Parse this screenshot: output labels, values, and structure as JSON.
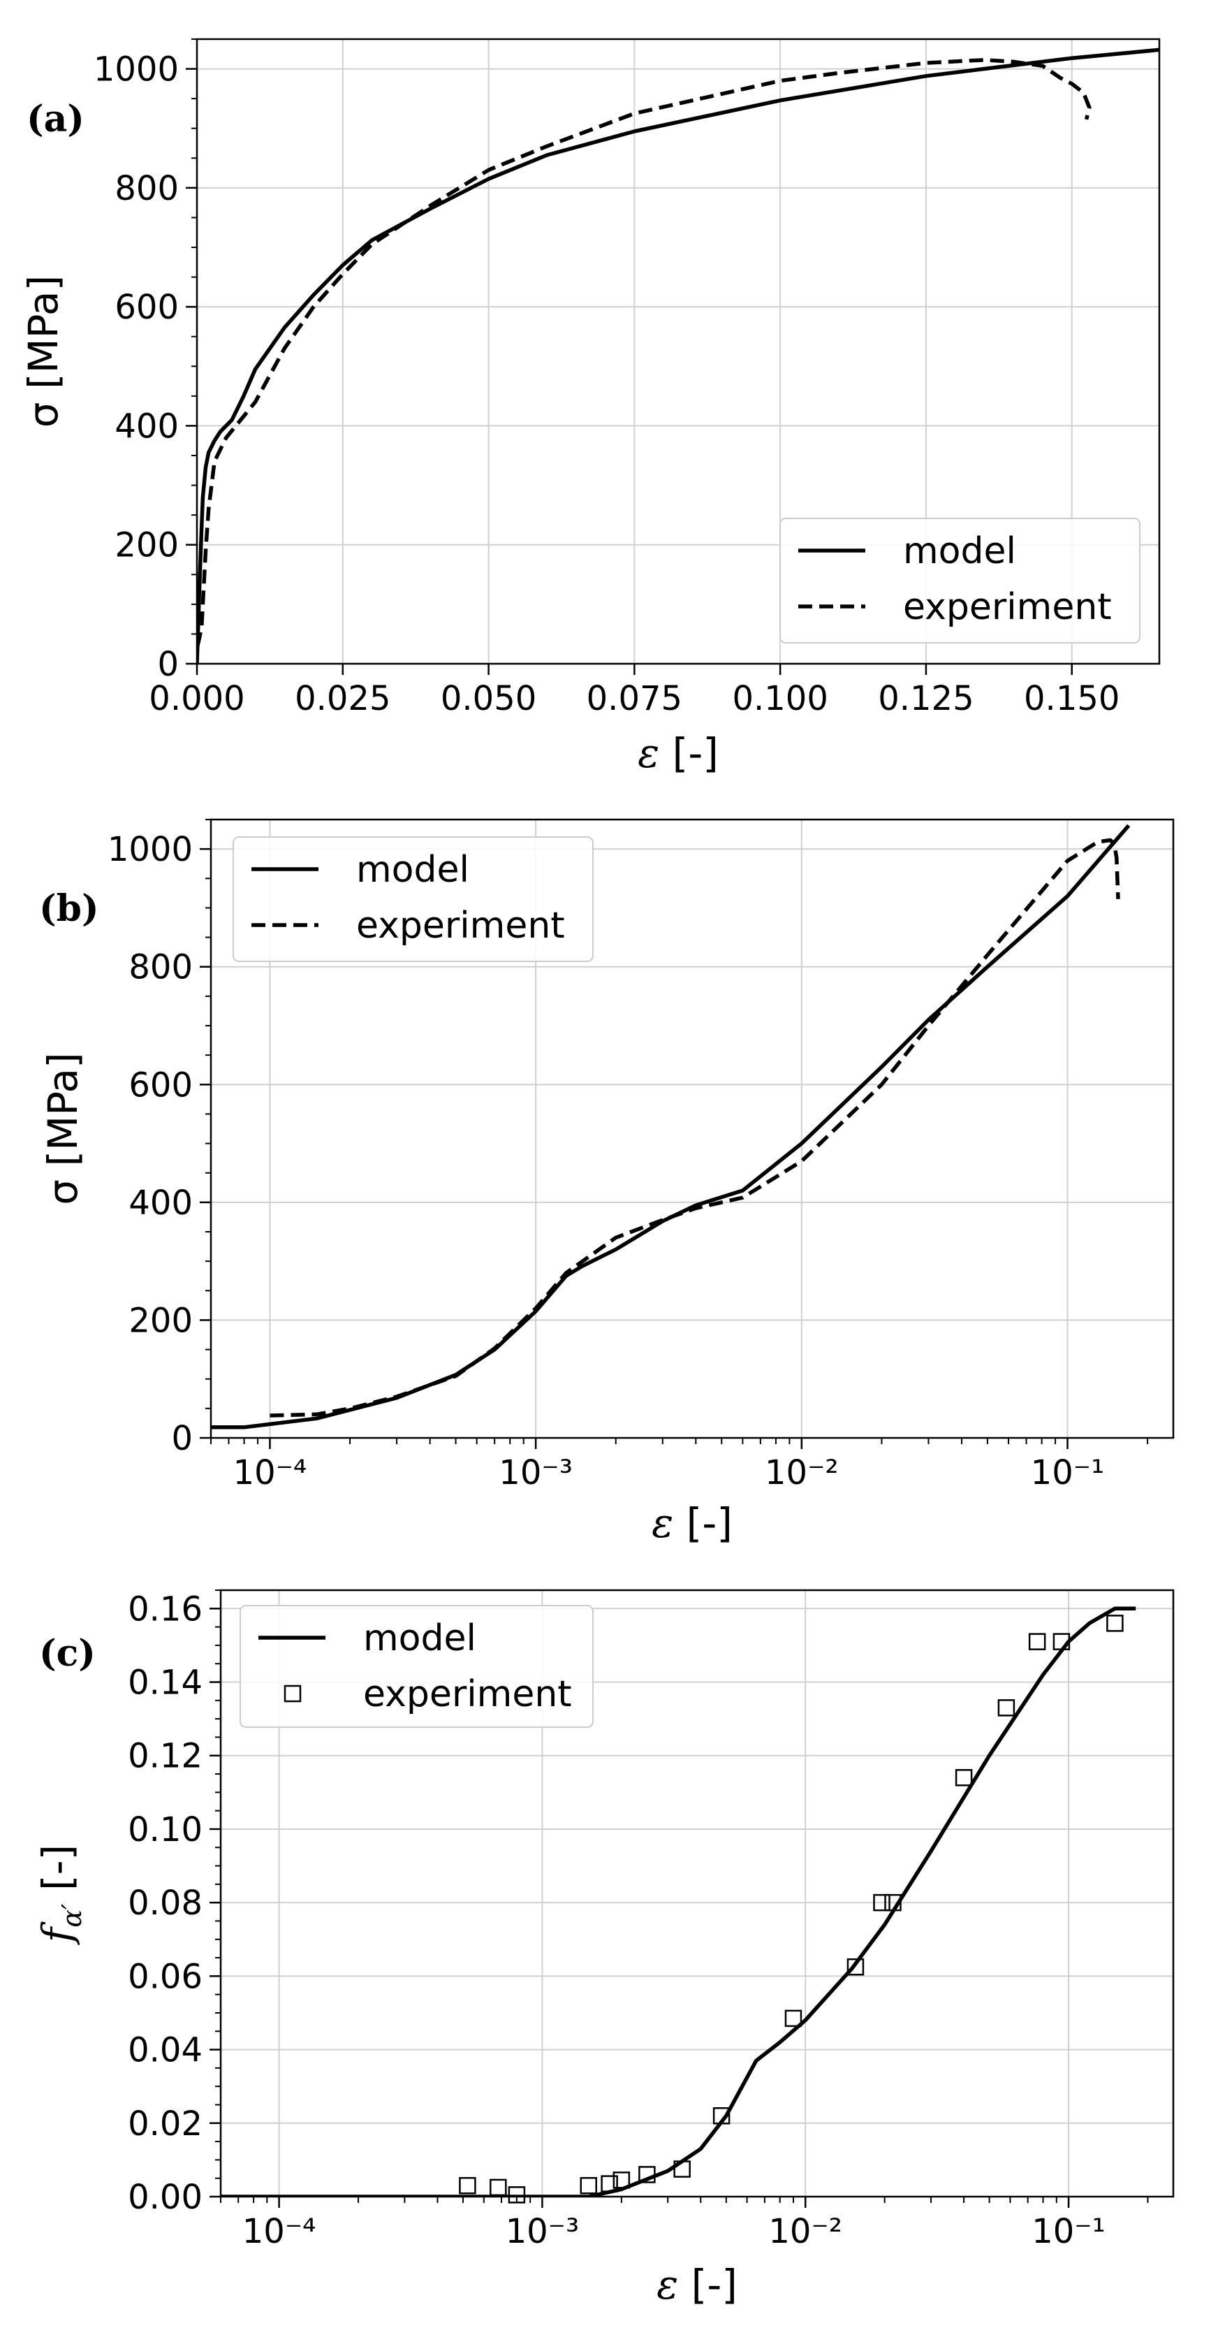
{
  "chart_data": [
    {
      "type": "line",
      "panel_label": "(a)",
      "xlabel": "ε [-]",
      "ylabel": "σ [MPa]",
      "xscale": "linear",
      "xlim": [
        0,
        0.165
      ],
      "ylim": [
        0,
        1050
      ],
      "xticks": [
        0,
        0.025,
        0.05,
        0.075,
        0.1,
        0.125,
        0.15
      ],
      "xticklabels": [
        "0.000",
        "0.025",
        "0.050",
        "0.075",
        "0.100",
        "0.125",
        "0.150"
      ],
      "yticks": [
        0,
        200,
        400,
        600,
        800,
        1000
      ],
      "yticklabels": [
        "0",
        "200",
        "400",
        "600",
        "800",
        "1000"
      ],
      "grid": true,
      "legend_position": "lower-right",
      "series": [
        {
          "name": "model",
          "style": "solid",
          "x": [
            0,
            0.0005,
            0.0008,
            0.001,
            0.0015,
            0.002,
            0.003,
            0.004,
            0.006,
            0.008,
            0.01,
            0.015,
            0.02,
            0.025,
            0.03,
            0.04,
            0.05,
            0.06,
            0.075,
            0.1,
            0.125,
            0.15,
            0.165
          ],
          "y": [
            0,
            150,
            230,
            280,
            330,
            355,
            375,
            390,
            410,
            450,
            495,
            565,
            620,
            670,
            712,
            765,
            815,
            855,
            895,
            947,
            988,
            1018,
            1032
          ]
        },
        {
          "name": "experiment",
          "style": "dashed",
          "x": [
            0.0001,
            0.0004,
            0.0008,
            0.001,
            0.0015,
            0.002,
            0.003,
            0.005,
            0.01,
            0.015,
            0.02,
            0.025,
            0.03,
            0.04,
            0.05,
            0.06,
            0.075,
            0.1,
            0.11,
            0.125,
            0.135,
            0.14,
            0.145,
            0.148,
            0.15,
            0.152,
            0.153,
            0.1525
          ],
          "y": [
            30,
            42,
            62,
            100,
            190,
            260,
            340,
            380,
            440,
            530,
            600,
            655,
            705,
            770,
            830,
            870,
            925,
            980,
            993,
            1010,
            1015,
            1012,
            1005,
            985,
            975,
            960,
            935,
            915
          ]
        }
      ]
    },
    {
      "type": "line",
      "panel_label": "(b)",
      "xlabel": "ε [-]",
      "ylabel": "σ [MPa]",
      "xscale": "log",
      "xlim": [
        6e-05,
        0.25
      ],
      "ylim": [
        0,
        1050
      ],
      "xticks": [
        0.0001,
        0.001,
        0.01,
        0.1
      ],
      "xticklabels": [
        "10⁻⁴",
        "10⁻³",
        "10⁻²",
        "10⁻¹"
      ],
      "yticks": [
        0,
        200,
        400,
        600,
        800,
        1000
      ],
      "yticklabels": [
        "0",
        "200",
        "400",
        "600",
        "800",
        "1000"
      ],
      "grid": true,
      "legend_position": "upper-left",
      "series": [
        {
          "name": "model",
          "style": "solid",
          "x": [
            6e-05,
            8e-05,
            0.00015,
            0.0003,
            0.0005,
            0.0007,
            0.001,
            0.0013,
            0.0015,
            0.002,
            0.003,
            0.004,
            0.006,
            0.01,
            0.02,
            0.03,
            0.05,
            0.1,
            0.17
          ],
          "y": [
            18,
            18,
            33,
            68,
            107,
            150,
            215,
            275,
            292,
            320,
            368,
            395,
            420,
            500,
            630,
            710,
            800,
            920,
            1040
          ]
        },
        {
          "name": "experiment",
          "style": "dashed",
          "x": [
            0.0001,
            0.00015,
            0.0002,
            0.0003,
            0.0005,
            0.0007,
            0.001,
            0.0013,
            0.0015,
            0.002,
            0.003,
            0.004,
            0.006,
            0.01,
            0.02,
            0.03,
            0.05,
            0.1,
            0.13,
            0.145,
            0.15,
            0.153,
            0.154,
            0.155
          ],
          "y": [
            38,
            40,
            50,
            70,
            105,
            152,
            220,
            280,
            300,
            340,
            370,
            390,
            408,
            470,
            600,
            700,
            820,
            980,
            1012,
            1015,
            1008,
            985,
            950,
            915
          ]
        }
      ]
    },
    {
      "type": "line",
      "panel_label": "(c)",
      "xlabel": "ε [-]",
      "ylabel": "fα′ [-]",
      "xscale": "log",
      "xlim": [
        6e-05,
        0.25
      ],
      "ylim": [
        0,
        0.165
      ],
      "xticks": [
        0.0001,
        0.001,
        0.01,
        0.1
      ],
      "xticklabels": [
        "10⁻⁴",
        "10⁻³",
        "10⁻²",
        "10⁻¹"
      ],
      "yticks": [
        0,
        0.02,
        0.04,
        0.06,
        0.08,
        0.1,
        0.12,
        0.14,
        0.16
      ],
      "yticklabels": [
        "0.00",
        "0.02",
        "0.04",
        "0.06",
        "0.08",
        "0.10",
        "0.12",
        "0.14",
        "0.16"
      ],
      "grid": true,
      "legend_position": "upper-left",
      "series": [
        {
          "name": "model",
          "style": "solid",
          "x": [
            6e-05,
            0.0005,
            0.0015,
            0.002,
            0.003,
            0.004,
            0.005,
            0.0065,
            0.008,
            0.01,
            0.015,
            0.02,
            0.03,
            0.05,
            0.08,
            0.1,
            0.12,
            0.15,
            0.18
          ],
          "y": [
            0,
            0,
            0,
            0.002,
            0.007,
            0.013,
            0.022,
            0.037,
            0.042,
            0.048,
            0.062,
            0.074,
            0.094,
            0.12,
            0.142,
            0.151,
            0.156,
            0.16,
            0.16
          ]
        },
        {
          "name": "experiment",
          "style": "square-markers",
          "x": [
            0.00052,
            0.00068,
            0.0008,
            0.0015,
            0.0018,
            0.002,
            0.0025,
            0.0034,
            0.0048,
            0.009,
            0.0155,
            0.0195,
            0.0215,
            0.04,
            0.058,
            0.076,
            0.094,
            0.15
          ],
          "y": [
            0.003,
            0.0025,
            0.0005,
            0.003,
            0.0035,
            0.0045,
            0.006,
            0.0075,
            0.022,
            0.0485,
            0.0625,
            0.08,
            0.08,
            0.114,
            0.133,
            0.151,
            0.151,
            0.156
          ]
        }
      ]
    }
  ]
}
